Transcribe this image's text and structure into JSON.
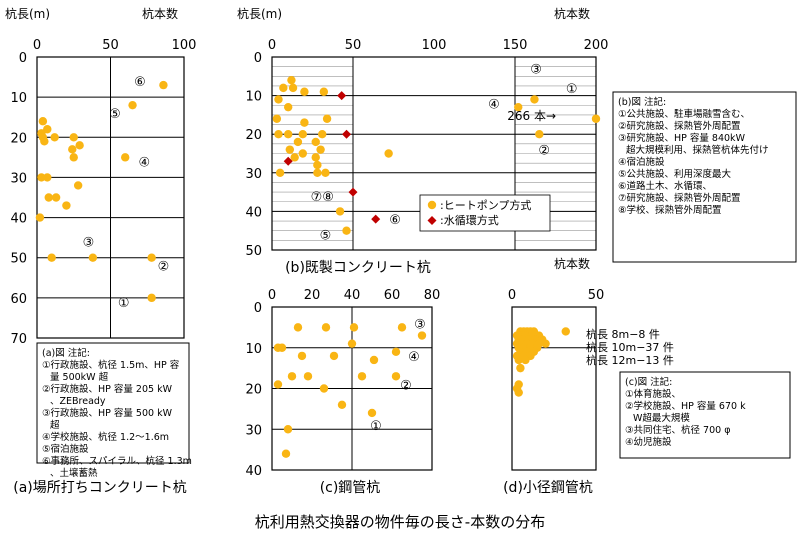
{
  "figure_title": "杭利用熱交換器の物件毎の長さ-本数の分布",
  "colors": {
    "heat_pump": "#F9B514",
    "water_loop": "#C00000",
    "grid": "#000000",
    "minor_grid": "#999999"
  },
  "chart_data": [
    {
      "id": "a",
      "type": "scatter",
      "caption": "(a)場所打ちコンクリート杭",
      "ylabel": "杭長(m)",
      "xlabel": "杭本数",
      "xlim": [
        0,
        100
      ],
      "ylim": [
        0,
        70
      ],
      "xticks": [
        "0",
        "50",
        "100"
      ],
      "yticks": [
        "0",
        "10",
        "20",
        "30",
        "40",
        "50",
        "60",
        "70"
      ],
      "points": [
        {
          "x": 86,
          "y": 7
        },
        {
          "x": 65,
          "y": 12
        },
        {
          "x": 4,
          "y": 16
        },
        {
          "x": 7,
          "y": 18
        },
        {
          "x": 3,
          "y": 19
        },
        {
          "x": 4,
          "y": 20
        },
        {
          "x": 5,
          "y": 21
        },
        {
          "x": 12,
          "y": 20
        },
        {
          "x": 25,
          "y": 20
        },
        {
          "x": 29,
          "y": 22
        },
        {
          "x": 24,
          "y": 23
        },
        {
          "x": 25,
          "y": 25
        },
        {
          "x": 60,
          "y": 25
        },
        {
          "x": 3,
          "y": 30
        },
        {
          "x": 7,
          "y": 30
        },
        {
          "x": 28,
          "y": 32
        },
        {
          "x": 8,
          "y": 35
        },
        {
          "x": 13,
          "y": 35
        },
        {
          "x": 20,
          "y": 37
        },
        {
          "x": 2,
          "y": 40
        },
        {
          "x": 10,
          "y": 50
        },
        {
          "x": 38,
          "y": 50
        },
        {
          "x": 78,
          "y": 50
        },
        {
          "x": 78,
          "y": 60
        }
      ],
      "labels": [
        {
          "text": "⑥",
          "x": 70,
          "y": 6
        },
        {
          "x": 53,
          "y": 14,
          "text": "⑤"
        },
        {
          "text": "④",
          "x": 73,
          "y": 26
        },
        {
          "text": "③",
          "x": 35,
          "y": 46
        },
        {
          "text": "②",
          "x": 86,
          "y": 52
        },
        {
          "text": "①",
          "x": 59,
          "y": 61
        }
      ],
      "note_title": "(a)図 注記:",
      "notes": [
        "①行政施設、杭径 1.5m、HP 容量 500kW 超",
        "②行政施設、HP 容量 205 kW、ZEBready",
        "③行政施設、HP 容量 500 kW 超",
        "④学校施設、杭径 1.2～1.6m",
        "⑤宿泊施設",
        "⑥事務所、スパイラル、杭径 1.3m、土壌蓄熱"
      ]
    },
    {
      "id": "b",
      "type": "scatter",
      "caption": "(b)既製コンクリート杭",
      "ylabel": "杭長(m)",
      "xlabel": "杭本数",
      "xlim": [
        0,
        200
      ],
      "ylim": [
        0,
        50
      ],
      "xticks": [
        "0",
        "50",
        "100",
        "150",
        "200"
      ],
      "yticks": [
        "0",
        "10",
        "20",
        "30",
        "40",
        "50"
      ],
      "series": [
        {
          "name": "ヒートポンプ方式",
          "marker": "circle",
          "points": [
            {
              "x": 12,
              "y": 6
            },
            {
              "x": 7,
              "y": 8
            },
            {
              "x": 13,
              "y": 8
            },
            {
              "x": 20,
              "y": 9
            },
            {
              "x": 32,
              "y": 9
            },
            {
              "x": 4,
              "y": 11
            },
            {
              "x": 10,
              "y": 13
            },
            {
              "x": 3,
              "y": 16
            },
            {
              "x": 20,
              "y": 17
            },
            {
              "x": 34,
              "y": 16
            },
            {
              "x": 4,
              "y": 20
            },
            {
              "x": 10,
              "y": 20
            },
            {
              "x": 19,
              "y": 20
            },
            {
              "x": 31,
              "y": 20
            },
            {
              "x": 16,
              "y": 22
            },
            {
              "x": 27,
              "y": 22
            },
            {
              "x": 11,
              "y": 24
            },
            {
              "x": 19,
              "y": 25
            },
            {
              "x": 30,
              "y": 24
            },
            {
              "x": 27,
              "y": 26
            },
            {
              "x": 14,
              "y": 26
            },
            {
              "x": 28,
              "y": 28
            },
            {
              "x": 5,
              "y": 30
            },
            {
              "x": 28,
              "y": 30
            },
            {
              "x": 33,
              "y": 30
            },
            {
              "x": 72,
              "y": 25
            },
            {
              "x": 42,
              "y": 40
            },
            {
              "x": 46,
              "y": 45
            },
            {
              "x": 152,
              "y": 13
            },
            {
              "x": 162,
              "y": 11
            },
            {
              "x": 165,
              "y": 20
            },
            {
              "x": 200,
              "y": 16
            }
          ]
        },
        {
          "name": "水循環方式",
          "marker": "diamond",
          "points": [
            {
              "x": 43,
              "y": 10
            },
            {
              "x": 46,
              "y": 20
            },
            {
              "x": 10,
              "y": 27
            },
            {
              "x": 50,
              "y": 35
            },
            {
              "x": 64,
              "y": 42
            }
          ]
        }
      ],
      "labels": [
        {
          "text": "③",
          "x": 163,
          "y": 3
        },
        {
          "text": "①",
          "x": 185,
          "y": 8
        },
        {
          "text": "④",
          "x": 137,
          "y": 12
        },
        {
          "text": "②",
          "x": 168,
          "y": 24
        },
        {
          "text": "⑦⑧",
          "x": 31,
          "y": 36
        },
        {
          "text": "⑥",
          "x": 76,
          "y": 42
        },
        {
          "text": "⑤",
          "x": 33,
          "y": 46
        }
      ],
      "callout": "266 本→",
      "note_title": "(b)図 注記:",
      "notes": [
        "①公共施設、駐車場融雪含む、",
        "②研究施設、採熱管外周配置",
        "③研究施設、HP 容量 840kW 超大規模利用、採熱管杭体先付け",
        "④宿泊施設",
        "⑤公共施設、利用深度最大",
        "⑥道路土木、水循環、",
        "⑦研究施設、採熱管外周配置",
        "⑧学校、採熱管外周配置"
      ]
    },
    {
      "id": "c",
      "type": "scatter",
      "caption": "(c)鋼管杭",
      "xlabel": "",
      "xlim": [
        0,
        80
      ],
      "ylim": [
        0,
        40
      ],
      "xticks": [
        "0",
        "20",
        "40",
        "60",
        "80"
      ],
      "yticks": [
        "0",
        "10",
        "20",
        "30",
        "40"
      ],
      "points": [
        {
          "x": 13,
          "y": 5
        },
        {
          "x": 27,
          "y": 5
        },
        {
          "x": 41,
          "y": 5
        },
        {
          "x": 65,
          "y": 5
        },
        {
          "x": 3,
          "y": 10
        },
        {
          "x": 5,
          "y": 10
        },
        {
          "x": 40,
          "y": 9
        },
        {
          "x": 75,
          "y": 7
        },
        {
          "x": 62,
          "y": 11
        },
        {
          "x": 15,
          "y": 12
        },
        {
          "x": 31,
          "y": 12
        },
        {
          "x": 51,
          "y": 13
        },
        {
          "x": 10,
          "y": 17
        },
        {
          "x": 18,
          "y": 17
        },
        {
          "x": 45,
          "y": 17
        },
        {
          "x": 62,
          "y": 17
        },
        {
          "x": 3,
          "y": 19
        },
        {
          "x": 26,
          "y": 20
        },
        {
          "x": 35,
          "y": 24
        },
        {
          "x": 50,
          "y": 26
        },
        {
          "x": 8,
          "y": 30
        },
        {
          "x": 7,
          "y": 36
        }
      ],
      "labels": [
        {
          "text": "③",
          "x": 74,
          "y": 4
        },
        {
          "text": "④",
          "x": 71,
          "y": 12
        },
        {
          "text": "②",
          "x": 67,
          "y": 19
        },
        {
          "text": "①",
          "x": 52,
          "y": 29
        }
      ]
    },
    {
      "id": "d",
      "type": "scatter",
      "caption": "(d)小径鋼管杭",
      "xlabel": "杭本数",
      "xlim": [
        0,
        50
      ],
      "ylim": [
        0,
        40
      ],
      "xticks": [
        "0",
        "50"
      ],
      "yticks": [],
      "points": [
        {
          "x": 5,
          "y": 6
        },
        {
          "x": 7,
          "y": 6
        },
        {
          "x": 9,
          "y": 6
        },
        {
          "x": 11,
          "y": 6
        },
        {
          "x": 13,
          "y": 6
        },
        {
          "x": 32,
          "y": 6
        },
        {
          "x": 3,
          "y": 7
        },
        {
          "x": 5,
          "y": 7
        },
        {
          "x": 8,
          "y": 7
        },
        {
          "x": 12,
          "y": 7
        },
        {
          "x": 16,
          "y": 7
        },
        {
          "x": 4,
          "y": 8
        },
        {
          "x": 6,
          "y": 8
        },
        {
          "x": 10,
          "y": 8
        },
        {
          "x": 14,
          "y": 8
        },
        {
          "x": 18,
          "y": 8
        },
        {
          "x": 3,
          "y": 9
        },
        {
          "x": 6,
          "y": 9
        },
        {
          "x": 9,
          "y": 9
        },
        {
          "x": 12,
          "y": 9
        },
        {
          "x": 16,
          "y": 9
        },
        {
          "x": 20,
          "y": 9
        },
        {
          "x": 4,
          "y": 10
        },
        {
          "x": 7,
          "y": 10
        },
        {
          "x": 11,
          "y": 10
        },
        {
          "x": 15,
          "y": 10
        },
        {
          "x": 5,
          "y": 11
        },
        {
          "x": 9,
          "y": 11
        },
        {
          "x": 13,
          "y": 11
        },
        {
          "x": 3,
          "y": 12
        },
        {
          "x": 7,
          "y": 12
        },
        {
          "x": 11,
          "y": 12
        },
        {
          "x": 4,
          "y": 13
        },
        {
          "x": 8,
          "y": 13
        },
        {
          "x": 5,
          "y": 15
        },
        {
          "x": 4,
          "y": 19
        },
        {
          "x": 3,
          "y": 20
        },
        {
          "x": 4,
          "y": 21
        }
      ],
      "length_notes": [
        "杭長 8m−8 件",
        "杭長 10m−37 件",
        "杭長 12m−13 件"
      ],
      "note_title": "(c)図 注記:",
      "notes": [
        "①体育施設、",
        "②学校施設、HP 容量 670 kW超最大規模",
        "③共同住宅、杭径 700 φ",
        "④幼児施設"
      ]
    }
  ]
}
